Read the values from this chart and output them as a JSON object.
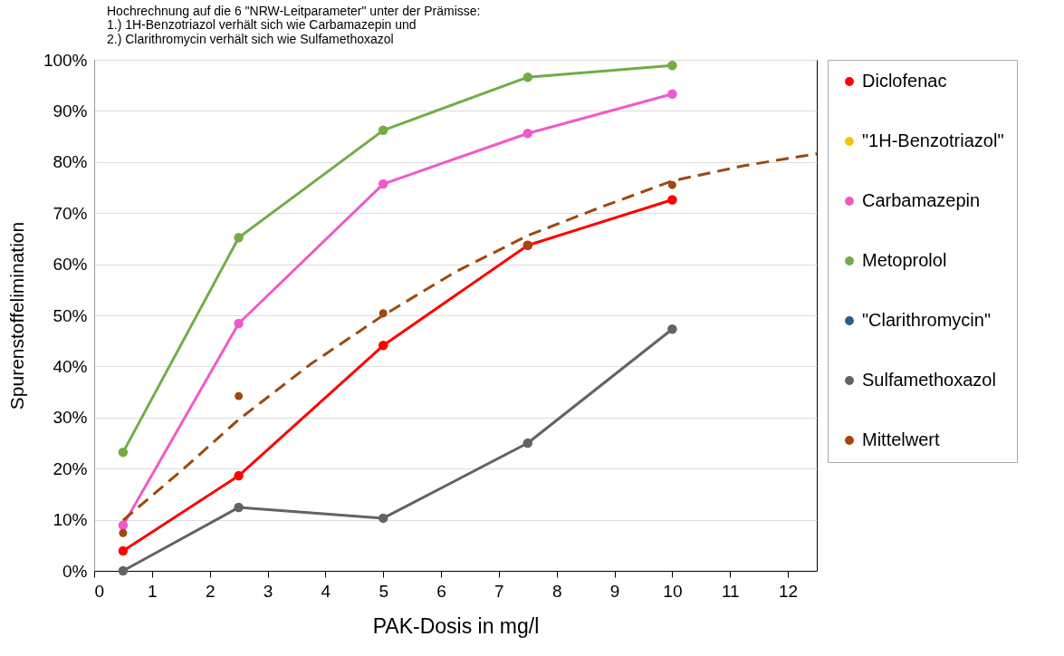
{
  "chart_data": {
    "type": "line",
    "title": "Hochrechnung auf die 6 \"NRW-Leitparameter\" unter der Prämisse:",
    "subtitle": "1.)  1H-Benzotriazol verhält sich wie Carbamazepin und\n2.)  Clarithromycin verhält sich wie Sulfamethoxazol",
    "xlabel": "PAK-Dosis in mg/l",
    "ylabel": "Spurenstoffelimination",
    "x": [
      0.5,
      2.5,
      5,
      7.5,
      10
    ],
    "series": [
      {
        "name": "Diclofenac",
        "color": "#ff0000",
        "values": [
          3.9,
          18.6,
          44.1,
          63.7,
          72.6
        ]
      },
      {
        "name": "\"1H-Benzotriazol\"",
        "color": "#ffc000",
        "values": [
          null,
          null,
          null,
          null,
          null
        ]
      },
      {
        "name": "Carbamazepin",
        "color": "#f05ac8",
        "values": [
          8.9,
          48.4,
          75.7,
          85.6,
          93.3
        ]
      },
      {
        "name": "Metoprolol",
        "color": "#70ad47",
        "values": [
          23.2,
          65.2,
          86.2,
          96.6,
          98.9
        ]
      },
      {
        "name": "\"Clarithromycin\"",
        "color": "#255e91",
        "values": [
          null,
          null,
          null,
          null,
          null
        ]
      },
      {
        "name": "Sulfamethoxazol",
        "color": "#636363",
        "values": [
          0,
          12.4,
          10.3,
          25,
          47.3
        ]
      },
      {
        "name": "Mittelwert",
        "type": "scatter",
        "color": "#9e480e",
        "values": [
          7.4,
          34.2,
          50.4,
          63.7,
          75.5
        ]
      },
      {
        "type": "line",
        "color": "#9e480e",
        "line_style": "dashed",
        "marker": "none",
        "x": [
          0.5,
          1.5,
          2.5,
          3.75,
          5,
          6.25,
          7.5,
          8.75,
          10,
          11.25,
          12.5
        ],
        "values": [
          9.9,
          19.5,
          29.6,
          40.5,
          50,
          58.5,
          65.6,
          71.1,
          76.3,
          79.3,
          81.6
        ]
      }
    ],
    "xlim": [
      0,
      12.5
    ],
    "xticks": [
      0,
      1,
      2,
      3,
      4,
      5,
      6,
      7,
      8,
      9,
      10,
      11,
      12
    ],
    "ylim": [
      0,
      100
    ],
    "yticks": [
      {
        "value": 0,
        "label": "0%"
      },
      {
        "value": 10,
        "label": "10%"
      },
      {
        "value": 20,
        "label": "20%"
      },
      {
        "value": 30,
        "label": "30%"
      },
      {
        "value": 40,
        "label": "40%"
      },
      {
        "value": 50,
        "label": "50%"
      },
      {
        "value": 60,
        "label": "60%"
      },
      {
        "value": 70,
        "label": "70%"
      },
      {
        "value": 80,
        "label": "80%"
      },
      {
        "value": 90,
        "label": "90%"
      },
      {
        "value": 100,
        "label": "100%"
      }
    ],
    "grid": "y",
    "legend": "right",
    "marker": "circle",
    "line_style": "solid"
  }
}
